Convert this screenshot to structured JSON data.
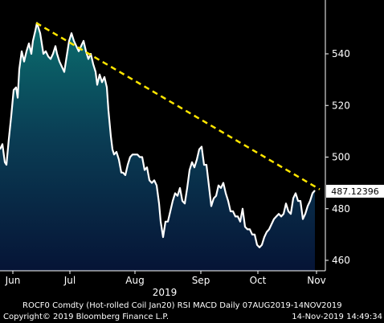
{
  "chart_data": {
    "type": "area",
    "series": [
      {
        "values": [
          [
            0,
            503
          ],
          [
            3,
            505
          ],
          [
            6,
            498
          ],
          [
            8,
            497
          ],
          [
            11,
            507
          ],
          [
            14,
            516
          ],
          [
            17,
            526
          ],
          [
            20,
            527
          ],
          [
            22,
            523
          ],
          [
            24,
            534
          ],
          [
            27,
            541
          ],
          [
            30,
            537
          ],
          [
            33,
            541
          ],
          [
            36,
            544
          ],
          [
            39,
            540
          ],
          [
            41,
            545
          ],
          [
            44,
            549
          ],
          [
            46,
            552
          ],
          [
            48,
            550
          ],
          [
            50,
            548
          ],
          [
            52,
            544
          ],
          [
            54,
            540
          ],
          [
            57,
            541
          ],
          [
            60,
            539
          ],
          [
            63,
            538
          ],
          [
            66,
            540
          ],
          [
            69,
            543
          ],
          [
            71,
            540
          ],
          [
            74,
            537
          ],
          [
            77,
            535
          ],
          [
            80,
            533
          ],
          [
            83,
            539
          ],
          [
            86,
            545
          ],
          [
            89,
            548
          ],
          [
            92,
            545
          ],
          [
            95,
            543
          ],
          [
            98,
            541
          ],
          [
            101,
            543
          ],
          [
            104,
            545
          ],
          [
            107,
            541
          ],
          [
            110,
            538
          ],
          [
            113,
            540
          ],
          [
            116,
            536
          ],
          [
            119,
            533
          ],
          [
            121,
            528
          ],
          [
            124,
            532
          ],
          [
            127,
            529
          ],
          [
            130,
            531
          ],
          [
            133,
            527
          ],
          [
            135,
            518
          ],
          [
            138,
            508
          ],
          [
            140,
            503
          ],
          [
            142,
            501
          ],
          [
            145,
            502
          ],
          [
            148,
            499
          ],
          [
            151,
            494
          ],
          [
            153,
            494
          ],
          [
            156,
            493
          ],
          [
            159,
            497
          ],
          [
            162,
            500
          ],
          [
            165,
            501
          ],
          [
            168,
            501
          ],
          [
            171,
            501
          ],
          [
            174,
            500
          ],
          [
            177,
            500
          ],
          [
            180,
            495
          ],
          [
            183,
            496
          ],
          [
            186,
            491
          ],
          [
            189,
            490
          ],
          [
            192,
            491
          ],
          [
            195,
            489
          ],
          [
            198,
            482
          ],
          [
            200,
            475
          ],
          [
            203,
            469
          ],
          [
            206,
            475
          ],
          [
            209,
            475
          ],
          [
            212,
            479
          ],
          [
            215,
            483
          ],
          [
            218,
            486
          ],
          [
            221,
            485
          ],
          [
            224,
            488
          ],
          [
            227,
            483
          ],
          [
            230,
            482
          ],
          [
            233,
            488
          ],
          [
            236,
            495
          ],
          [
            239,
            498
          ],
          [
            242,
            496
          ],
          [
            245,
            499
          ],
          [
            248,
            503
          ],
          [
            251,
            504
          ],
          [
            254,
            497
          ],
          [
            257,
            497
          ],
          [
            260,
            489
          ],
          [
            263,
            481
          ],
          [
            266,
            484
          ],
          [
            269,
            485
          ],
          [
            272,
            489
          ],
          [
            275,
            488
          ],
          [
            278,
            490
          ],
          [
            281,
            486
          ],
          [
            284,
            483
          ],
          [
            287,
            479
          ],
          [
            290,
            479
          ],
          [
            293,
            477
          ],
          [
            296,
            477
          ],
          [
            299,
            475
          ],
          [
            302,
            480
          ],
          [
            305,
            473
          ],
          [
            308,
            472
          ],
          [
            311,
            472
          ],
          [
            314,
            470
          ],
          [
            317,
            470
          ],
          [
            320,
            466
          ],
          [
            323,
            465
          ],
          [
            326,
            466
          ],
          [
            329,
            469
          ],
          [
            332,
            471
          ],
          [
            335,
            472
          ],
          [
            338,
            474
          ],
          [
            341,
            476
          ],
          [
            344,
            477
          ],
          [
            347,
            478
          ],
          [
            350,
            477
          ],
          [
            353,
            478
          ],
          [
            356,
            482
          ],
          [
            359,
            479
          ],
          [
            362,
            478
          ],
          [
            365,
            484
          ],
          [
            368,
            486
          ],
          [
            371,
            483
          ],
          [
            374,
            483
          ],
          [
            377,
            476
          ],
          [
            380,
            478
          ],
          [
            383,
            481
          ],
          [
            386,
            483
          ],
          [
            389,
            486
          ],
          [
            392,
            487.12396
          ]
        ]
      }
    ],
    "trendline": {
      "from": [
        45,
        552
      ],
      "to": [
        398,
        487.5
      ],
      "color": "#ffe600"
    },
    "last_value": "487.12396",
    "ylim": [
      456,
      562
    ],
    "yticks": [
      "540",
      "520",
      "500",
      "480",
      "460"
    ],
    "xticks": [
      "Jun",
      "Jul",
      "Aug",
      "Sep",
      "Oct",
      "Nov"
    ],
    "year_label": "2019",
    "colors": {
      "line": "#ffffff",
      "fill_top": "#0b6e6e",
      "fill_bottom": "#061436",
      "trend": "#ffe600"
    }
  },
  "footer": {
    "line1": "ROCF0 Comdty (Hot-rolled Coil   Jan20) RSI MACD  Daily 07AUG2019-14NOV2019",
    "line2_left": "Copyright© 2019 Bloomberg Finance L.P.",
    "line2_right": "14-Nov-2019 14:49:34"
  }
}
